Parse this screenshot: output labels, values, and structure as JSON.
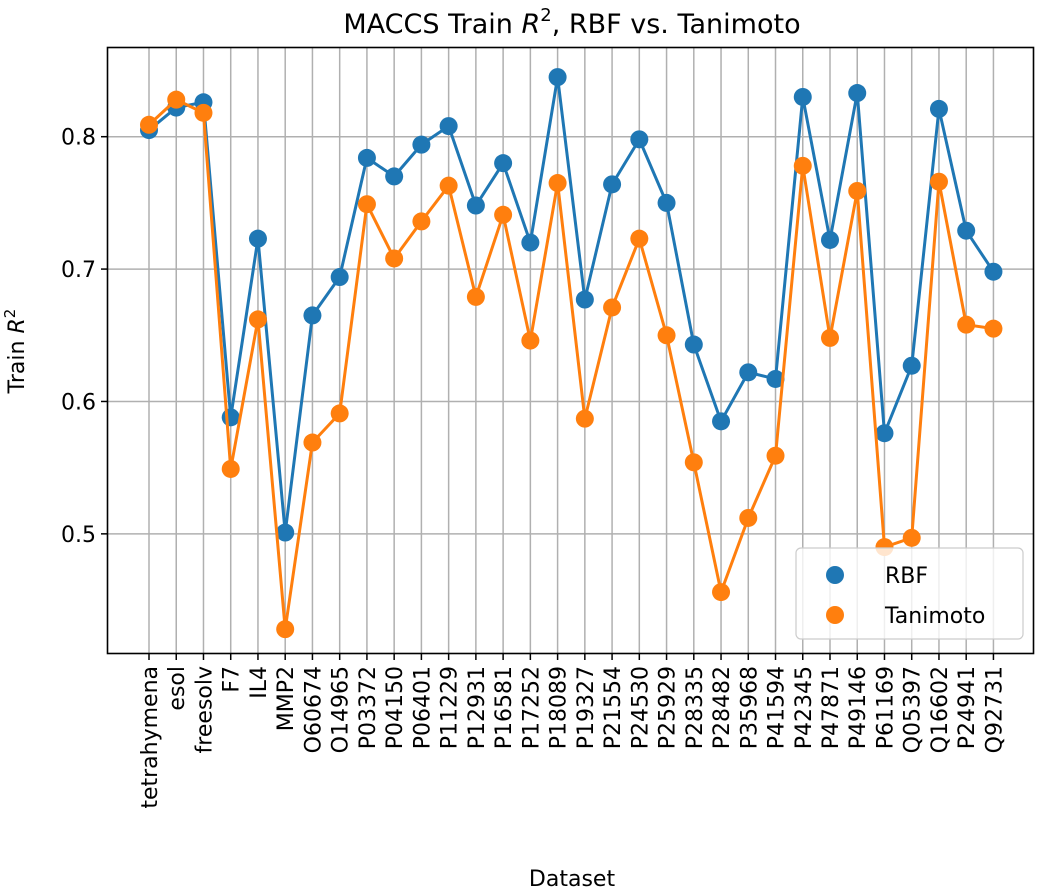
{
  "chart_data": {
    "type": "line",
    "title_prefix": "MACCS Train ",
    "title_var": "R",
    "title_sup": "2",
    "title_suffix": ", RBF vs. Tanimoto",
    "xlabel": "Dataset",
    "ylabel_prefix": "Train ",
    "ylabel_var": "R",
    "ylabel_sup": "2",
    "ylim": [
      0.41,
      0.867
    ],
    "yticks": [
      0.5,
      0.6,
      0.7,
      0.8
    ],
    "ytick_labels": [
      "0.5",
      "0.6",
      "0.7",
      "0.8"
    ],
    "grid": true,
    "legend_position": "lower-right",
    "categories": [
      "tetrahymena",
      "esol",
      "freesolv",
      "F7",
      "IL4",
      "MMP2",
      "O60674",
      "O14965",
      "P03372",
      "P04150",
      "P06401",
      "P11229",
      "P12931",
      "P16581",
      "P17252",
      "P18089",
      "P19327",
      "P21554",
      "P24530",
      "P25929",
      "P28335",
      "P28482",
      "P35968",
      "P41594",
      "P42345",
      "P47871",
      "P49146",
      "P61169",
      "Q05397",
      "Q16602",
      "P24941",
      "Q92731"
    ],
    "series": [
      {
        "name": "RBF",
        "color": "#1f77b4",
        "values": [
          0.805,
          0.822,
          0.826,
          0.588,
          0.723,
          0.501,
          0.665,
          0.694,
          0.784,
          0.77,
          0.794,
          0.808,
          0.748,
          0.78,
          0.72,
          0.845,
          0.677,
          0.764,
          0.798,
          0.75,
          0.643,
          0.585,
          0.622,
          0.617,
          0.83,
          0.722,
          0.833,
          0.576,
          0.627,
          0.821,
          0.729,
          0.698
        ]
      },
      {
        "name": "Tanimoto",
        "color": "#ff7f0e",
        "values": [
          0.809,
          0.828,
          0.818,
          0.549,
          0.662,
          0.428,
          0.569,
          0.591,
          0.749,
          0.708,
          0.736,
          0.763,
          0.679,
          0.741,
          0.646,
          0.765,
          0.587,
          0.671,
          0.723,
          0.65,
          0.554,
          0.456,
          0.512,
          0.559,
          0.778,
          0.648,
          0.759,
          0.49,
          0.497,
          0.766,
          0.658,
          0.655
        ]
      }
    ]
  }
}
